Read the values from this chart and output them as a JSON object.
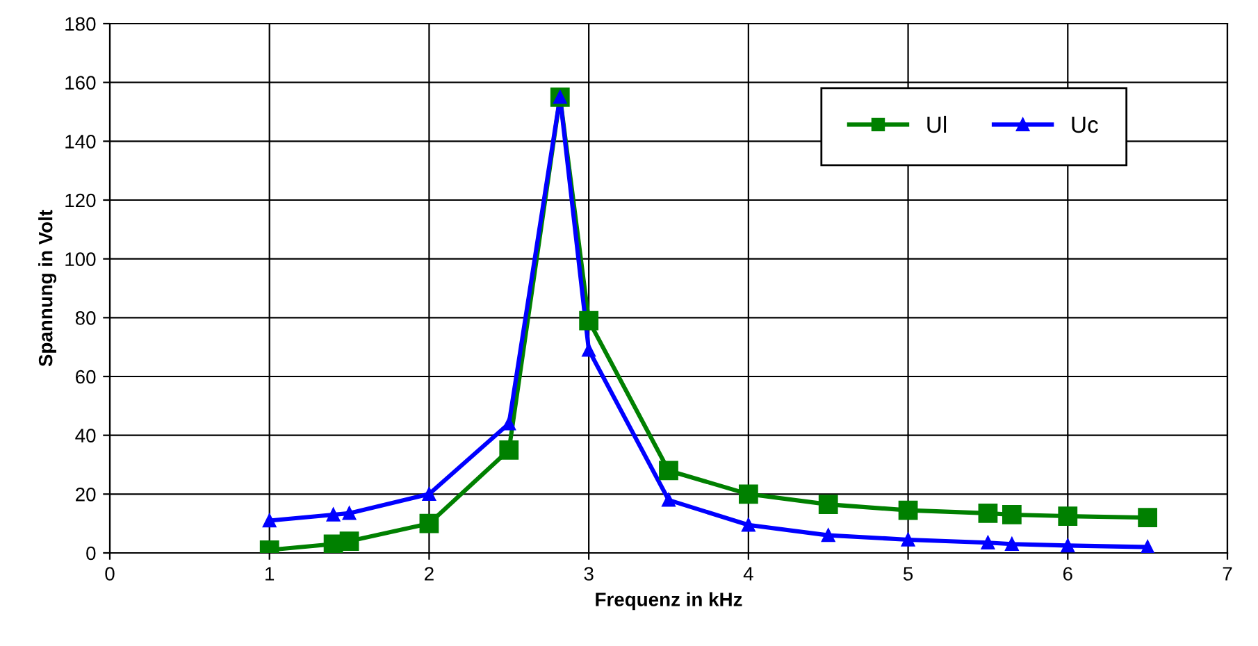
{
  "chart_data": {
    "type": "line",
    "xlabel": "Frequenz in kHz",
    "ylabel": "Spannung in Volt",
    "x": [
      1,
      1.4,
      1.5,
      2,
      2.5,
      2.82,
      3,
      3.5,
      4,
      4.5,
      5,
      5.5,
      5.65,
      6,
      6.5
    ],
    "series": [
      {
        "name": "Ul",
        "color": "#008000",
        "marker": "square",
        "values": [
          1,
          3,
          4,
          10,
          35,
          155,
          79,
          28,
          20,
          16.5,
          14.5,
          13.5,
          13,
          12.5,
          12
        ]
      },
      {
        "name": "Uc",
        "color": "#0000ff",
        "marker": "triangle",
        "values": [
          11,
          13,
          13.5,
          20,
          44,
          155,
          69,
          18,
          9.5,
          6,
          4.5,
          3.5,
          3,
          2.5,
          2
        ]
      }
    ],
    "xlim": [
      0,
      7
    ],
    "xticks": [
      0,
      1,
      2,
      3,
      4,
      5,
      6,
      7
    ],
    "ylim": [
      0,
      180
    ],
    "yticks": [
      0,
      20,
      40,
      60,
      80,
      100,
      120,
      140,
      160,
      180
    ],
    "grid": true,
    "legend": "top right",
    "line_style": "solid"
  }
}
